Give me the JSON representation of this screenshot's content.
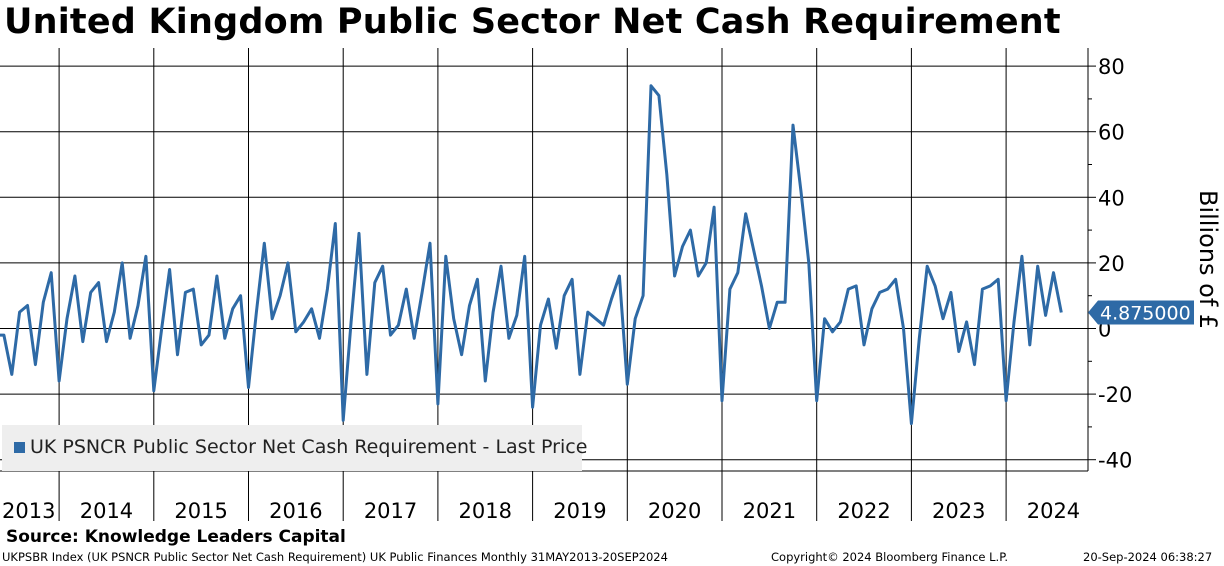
{
  "header": {
    "title": "United Kingdom Public Sector Net Cash Requirement"
  },
  "chart_data": {
    "type": "line",
    "title": "United Kingdom Public Sector Net Cash Requirement",
    "ylabel": "Billions of £",
    "xlabel": "",
    "ylim": [
      -45,
      85
    ],
    "yticks": [
      "80",
      "60",
      "40",
      "20",
      "0",
      "-20",
      "-40"
    ],
    "ytick_values": [
      80,
      60,
      40,
      20,
      0,
      -20,
      -40
    ],
    "year_labels": [
      "2013",
      "2014",
      "2015",
      "2016",
      "2017",
      "2018",
      "2019",
      "2020",
      "2021",
      "2022",
      "2023",
      "2024"
    ],
    "last_price_label": "4.875000",
    "last_price": 4.875,
    "x_start": "2013-05",
    "series": [
      {
        "name": "UK PSNCR Public Sector Net Cash Requirement - Last Price",
        "color": "#2e6aa6",
        "values": [
          -2,
          -2,
          -14,
          5,
          7,
          -11,
          8,
          17,
          -16,
          3,
          16,
          -4,
          11,
          14,
          -4,
          5,
          20,
          -3,
          7,
          22,
          -19,
          0,
          18,
          -8,
          11,
          12,
          -5,
          -2,
          16,
          -3,
          6,
          10,
          -18,
          5,
          26,
          3,
          10,
          20,
          -1,
          2,
          6,
          -3,
          12,
          32,
          -28,
          2,
          29,
          -14,
          14,
          19,
          -2,
          1,
          12,
          -3,
          11,
          26,
          -23,
          22,
          3,
          -8,
          7,
          15,
          -16,
          5,
          19,
          -3,
          4,
          22,
          -24,
          1,
          9,
          -6,
          10,
          15,
          -14,
          5,
          3,
          1,
          9,
          16,
          -17,
          3,
          10,
          74,
          71,
          47,
          16,
          25,
          30,
          16,
          20,
          37,
          -22,
          12,
          17,
          35,
          24,
          13,
          0,
          8,
          8,
          62,
          42,
          20,
          -22,
          3,
          -1,
          2,
          12,
          13,
          -5,
          6,
          11,
          12,
          15,
          0,
          -29,
          -3,
          19,
          13,
          3,
          11,
          -7,
          2,
          -11,
          12,
          13,
          15,
          -22,
          2,
          22,
          -5,
          19,
          4,
          17,
          4.875
        ]
      }
    ]
  },
  "legend": {
    "label": "UK PSNCR Public Sector Net Cash Requirement - Last Price"
  },
  "source": "Source: Knowledge Leaders Capital",
  "footer": {
    "left": "UKPSBR Index (UK PSNCR Public Sector Net Cash Requirement) UK Public Finances  Monthly 31MAY2013-20SEP2024",
    "middle": "Copyright© 2024 Bloomberg Finance L.P.",
    "right": "20-Sep-2024 06:38:27"
  }
}
